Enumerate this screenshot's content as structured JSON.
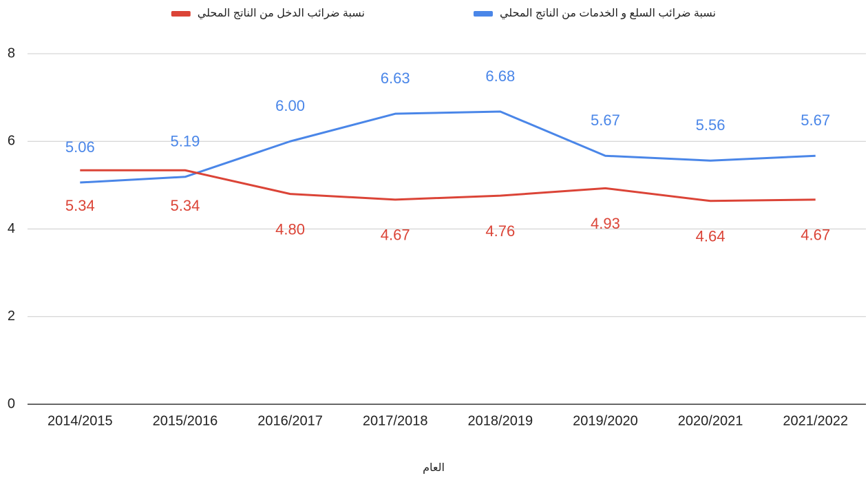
{
  "chart_data": {
    "type": "line",
    "x_label": "العام",
    "categories": [
      "2014/2015",
      "2015/2016",
      "2016/2017",
      "2017/2018",
      "2018/2019",
      "2019/2020",
      "2020/2021",
      "2021/2022"
    ],
    "series": [
      {
        "name": "نسبة ضرائب السلع و الخدمات من الناتج المحلي",
        "color": "#4a86e8",
        "values": [
          5.06,
          5.19,
          6.0,
          6.63,
          6.68,
          5.67,
          5.56,
          5.67
        ],
        "value_labels": [
          "5.06",
          "5.19",
          "6.00",
          "6.63",
          "6.68",
          "5.67",
          "5.56",
          "5.67"
        ]
      },
      {
        "name": "نسبة ضرائب الدخل من الناتج المحلي",
        "color": "#db4437",
        "values": [
          5.34,
          5.34,
          4.8,
          4.67,
          4.76,
          4.93,
          4.64,
          4.67
        ],
        "value_labels": [
          "5.34",
          "5.34",
          "4.80",
          "4.67",
          "4.76",
          "4.93",
          "4.64",
          "4.67"
        ]
      }
    ],
    "ylim": [
      0,
      8
    ],
    "yticks": [
      0,
      2,
      4,
      6,
      8
    ],
    "grid": true,
    "legend": "top"
  }
}
